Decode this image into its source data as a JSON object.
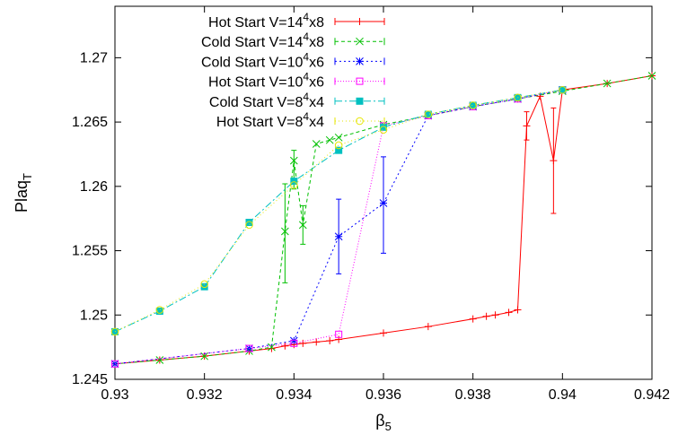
{
  "chart_data": {
    "type": "line",
    "xlabel": "β",
    "xlabel_sub": "5",
    "ylabel": "Plaq",
    "ylabel_sub": "T",
    "xlim": [
      0.93,
      0.942
    ],
    "ylim": [
      1.245,
      1.274
    ],
    "xticks": [
      0.93,
      0.932,
      0.934,
      0.936,
      0.938,
      0.94,
      0.942
    ],
    "xtick_labels": [
      "0.93",
      "0.932",
      "0.934",
      "0.936",
      "0.938",
      "0.94",
      "0.942"
    ],
    "yticks": [
      1.245,
      1.25,
      1.255,
      1.26,
      1.265,
      1.27
    ],
    "ytick_labels": [
      "1.245",
      "1.25",
      "1.255",
      "1.26",
      "1.265",
      "1.27"
    ],
    "grid": false,
    "legend_position": "top-left",
    "series": [
      {
        "name_prefix": "Hot Start V=14",
        "name_sup": "4",
        "name_suffix": "x8",
        "color": "#ff0000",
        "marker": "plus",
        "dash": "",
        "points": [
          [
            0.93,
            1.2462
          ],
          [
            0.931,
            1.2465
          ],
          [
            0.932,
            1.2468
          ],
          [
            0.933,
            1.2472
          ],
          [
            0.9335,
            1.2474
          ],
          [
            0.9338,
            1.2476
          ],
          [
            0.934,
            1.2477
          ],
          [
            0.9342,
            1.2478
          ],
          [
            0.9345,
            1.2479
          ],
          [
            0.9348,
            1.248
          ],
          [
            0.935,
            1.2481
          ],
          [
            0.936,
            1.2486
          ],
          [
            0.937,
            1.2491
          ],
          [
            0.938,
            1.2497
          ],
          [
            0.9383,
            1.2499
          ],
          [
            0.9385,
            1.25
          ],
          [
            0.9388,
            1.2502
          ],
          [
            0.939,
            1.2504
          ],
          [
            0.9392,
            1.2647
          ],
          [
            0.9395,
            1.267
          ],
          [
            0.9398,
            1.262
          ],
          [
            0.94,
            1.2675
          ],
          [
            0.941,
            1.268
          ],
          [
            0.942,
            1.2686
          ]
        ],
        "errors": [
          [
            0.9392,
            1.2636,
            1.2658
          ],
          [
            0.9398,
            1.2579,
            1.2661
          ]
        ]
      },
      {
        "name_prefix": "Cold Start V=14",
        "name_sup": "4",
        "name_suffix": "x8",
        "color": "#00c000",
        "marker": "x",
        "dash": "4,3",
        "points": [
          [
            0.93,
            1.2462
          ],
          [
            0.931,
            1.2465
          ],
          [
            0.932,
            1.2468
          ],
          [
            0.933,
            1.2472
          ],
          [
            0.9335,
            1.2475
          ],
          [
            0.9338,
            1.2565
          ],
          [
            0.934,
            1.262
          ],
          [
            0.9342,
            1.257
          ],
          [
            0.9345,
            1.2633
          ],
          [
            0.9348,
            1.2636
          ],
          [
            0.935,
            1.2638
          ],
          [
            0.936,
            1.2648
          ],
          [
            0.937,
            1.2655
          ],
          [
            0.938,
            1.2662
          ],
          [
            0.939,
            1.2668
          ],
          [
            0.94,
            1.2674
          ],
          [
            0.941,
            1.268
          ],
          [
            0.942,
            1.2686
          ]
        ],
        "errors": [
          [
            0.9338,
            1.2525,
            1.2602
          ],
          [
            0.934,
            1.2598,
            1.2628
          ],
          [
            0.9342,
            1.2555,
            1.2585
          ]
        ]
      },
      {
        "name_prefix": "Cold Start V=10",
        "name_sup": "4",
        "name_suffix": "x6",
        "color": "#0000ff",
        "marker": "star",
        "dash": "2,3",
        "points": [
          [
            0.93,
            1.2462
          ],
          [
            0.933,
            1.2474
          ],
          [
            0.934,
            1.248
          ],
          [
            0.935,
            1.2561
          ],
          [
            0.936,
            1.2587
          ],
          [
            0.937,
            1.2655
          ],
          [
            0.938,
            1.2662
          ],
          [
            0.939,
            1.2668
          ],
          [
            0.94,
            1.2675
          ]
        ],
        "errors": [
          [
            0.935,
            1.2532,
            1.259
          ],
          [
            0.936,
            1.2548,
            1.2623
          ]
        ]
      },
      {
        "name_prefix": "Hot Start V=10",
        "name_sup": "4",
        "name_suffix": "x6",
        "color": "#ff00ff",
        "marker": "square-open",
        "dash": "1,2",
        "points": [
          [
            0.93,
            1.2462
          ],
          [
            0.933,
            1.2474
          ],
          [
            0.934,
            1.2478
          ],
          [
            0.935,
            1.2485
          ],
          [
            0.936,
            1.2647
          ],
          [
            0.937,
            1.2655
          ],
          [
            0.938,
            1.2662
          ],
          [
            0.939,
            1.2668
          ],
          [
            0.94,
            1.2675
          ]
        ],
        "errors": []
      },
      {
        "name_prefix": "Cold Start V=8",
        "name_sup": "4",
        "name_suffix": "x4",
        "color": "#00c0c0",
        "marker": "square-filled",
        "dash": "8,3,2,3",
        "points": [
          [
            0.93,
            1.2487
          ],
          [
            0.931,
            1.2503
          ],
          [
            0.932,
            1.2522
          ],
          [
            0.933,
            1.2572
          ],
          [
            0.934,
            1.2604
          ],
          [
            0.935,
            1.2628
          ],
          [
            0.936,
            1.2646
          ],
          [
            0.937,
            1.2656
          ],
          [
            0.938,
            1.2663
          ],
          [
            0.939,
            1.2669
          ],
          [
            0.94,
            1.2675
          ]
        ],
        "errors": []
      },
      {
        "name_prefix": "Hot Start V=8",
        "name_sup": "4",
        "name_suffix": "x4",
        "color": "#e6e600",
        "marker": "circle-open",
        "dash": "1,3",
        "points": [
          [
            0.93,
            1.2487
          ],
          [
            0.931,
            1.2504
          ],
          [
            0.932,
            1.2524
          ],
          [
            0.933,
            1.257
          ],
          [
            0.934,
            1.2601
          ],
          [
            0.935,
            1.2632
          ],
          [
            0.936,
            1.2644
          ],
          [
            0.937,
            1.2656
          ],
          [
            0.938,
            1.2663
          ],
          [
            0.939,
            1.2669
          ],
          [
            0.94,
            1.2675
          ]
        ],
        "errors": []
      }
    ]
  }
}
